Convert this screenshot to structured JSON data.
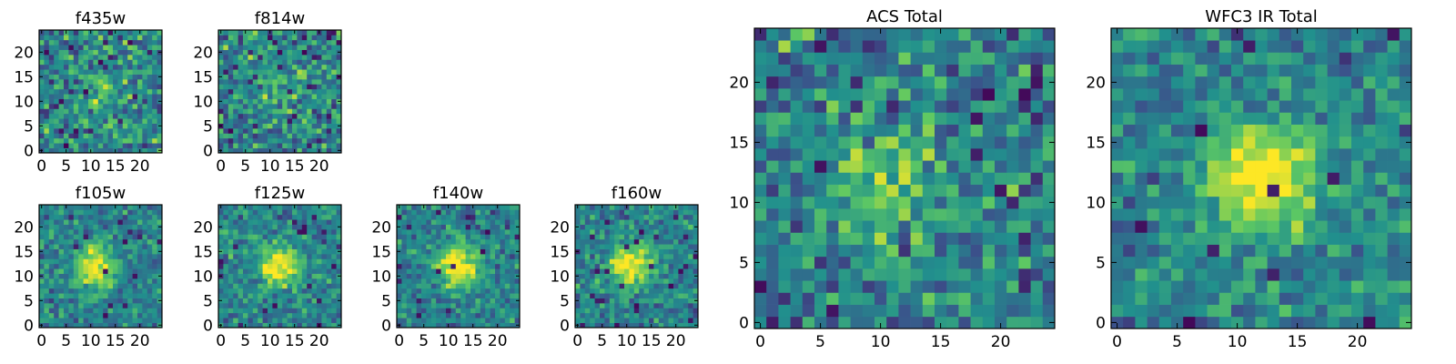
{
  "figure": {
    "colormap": "viridis",
    "colormap_stops": [
      "#440154",
      "#3b528b",
      "#21908d",
      "#5dc863",
      "#fde725"
    ],
    "frame_color": "#000000",
    "panels": [
      {
        "id": "f435w",
        "title": "f435w",
        "group": "ACS"
      },
      {
        "id": "f814w",
        "title": "f814w",
        "group": "ACS"
      },
      {
        "id": "f105w",
        "title": "f105w",
        "group": "WFC3 IR"
      },
      {
        "id": "f125w",
        "title": "f125w",
        "group": "WFC3 IR"
      },
      {
        "id": "f140w",
        "title": "f140w",
        "group": "WFC3 IR"
      },
      {
        "id": "f160w",
        "title": "f160w",
        "group": "WFC3 IR"
      },
      {
        "id": "acs-total",
        "title": "ACS Total",
        "group": "ACS"
      },
      {
        "id": "wfc3-ir-total",
        "title": "WFC3 IR Total",
        "group": "WFC3 IR"
      }
    ]
  },
  "chart_data": [
    {
      "type": "heatmap",
      "title": "f435w",
      "grid_size": [
        25,
        25
      ],
      "xlim": [
        0,
        24
      ],
      "ylim": [
        0,
        24
      ],
      "xticks": [
        0,
        5,
        10,
        15,
        20
      ],
      "yticks": [
        0,
        5,
        10,
        15,
        20
      ],
      "origin": "lower",
      "source_peak": [
        13,
        12
      ],
      "source_strength": 0.2,
      "noise": 0.45,
      "seed": 11
    },
    {
      "type": "heatmap",
      "title": "f814w",
      "grid_size": [
        25,
        25
      ],
      "xlim": [
        0,
        24
      ],
      "ylim": [
        0,
        24
      ],
      "xticks": [
        0,
        5,
        10,
        15,
        20
      ],
      "yticks": [
        0,
        5,
        10,
        15,
        20
      ],
      "origin": "lower",
      "source_peak": [
        12,
        12
      ],
      "source_strength": 0.25,
      "noise": 0.45,
      "seed": 23
    },
    {
      "type": "heatmap",
      "title": "f105w",
      "grid_size": [
        25,
        25
      ],
      "xlim": [
        0,
        24
      ],
      "ylim": [
        0,
        24
      ],
      "xticks": [
        0,
        5,
        10,
        15,
        20
      ],
      "yticks": [
        0,
        5,
        10,
        15,
        20
      ],
      "origin": "lower",
      "source_peak": [
        11,
        12
      ],
      "source_strength": 0.55,
      "noise": 0.3,
      "seed": 37
    },
    {
      "type": "heatmap",
      "title": "f125w",
      "grid_size": [
        25,
        25
      ],
      "xlim": [
        0,
        24
      ],
      "ylim": [
        0,
        24
      ],
      "xticks": [
        0,
        5,
        10,
        15,
        20
      ],
      "yticks": [
        0,
        5,
        10,
        15,
        20
      ],
      "origin": "lower",
      "source_peak": [
        12,
        12
      ],
      "source_strength": 0.55,
      "noise": 0.3,
      "seed": 41
    },
    {
      "type": "heatmap",
      "title": "f140w",
      "grid_size": [
        25,
        25
      ],
      "xlim": [
        0,
        24
      ],
      "ylim": [
        0,
        24
      ],
      "xticks": [
        0,
        5,
        10,
        15,
        20
      ],
      "yticks": [
        0,
        5,
        10,
        15,
        20
      ],
      "origin": "lower",
      "source_peak": [
        12,
        12
      ],
      "source_strength": 0.6,
      "noise": 0.3,
      "seed": 53
    },
    {
      "type": "heatmap",
      "title": "f160w",
      "grid_size": [
        25,
        25
      ],
      "xlim": [
        0,
        24
      ],
      "ylim": [
        0,
        24
      ],
      "xticks": [
        0,
        5,
        10,
        15,
        20
      ],
      "yticks": [
        0,
        5,
        10,
        15,
        20
      ],
      "origin": "lower",
      "source_peak": [
        11,
        12
      ],
      "source_strength": 0.6,
      "noise": 0.3,
      "seed": 67
    },
    {
      "type": "heatmap",
      "title": "ACS Total",
      "grid_size": [
        25,
        25
      ],
      "xlim": [
        0,
        24
      ],
      "ylim": [
        0,
        24
      ],
      "xticks": [
        0,
        5,
        10,
        15,
        20
      ],
      "yticks": [
        0,
        5,
        10,
        15,
        20
      ],
      "origin": "lower",
      "source_peak": [
        11,
        12
      ],
      "source_strength": 0.3,
      "noise": 0.4,
      "seed": 79
    },
    {
      "type": "heatmap",
      "title": "WFC3 IR Total",
      "grid_size": [
        25,
        25
      ],
      "xlim": [
        0,
        24
      ],
      "ylim": [
        0,
        24
      ],
      "xticks": [
        0,
        5,
        10,
        15,
        20
      ],
      "yticks": [
        0,
        5,
        10,
        15,
        20
      ],
      "origin": "lower",
      "source_peak": [
        12,
        12
      ],
      "source_strength": 0.65,
      "noise": 0.3,
      "seed": 97
    }
  ]
}
